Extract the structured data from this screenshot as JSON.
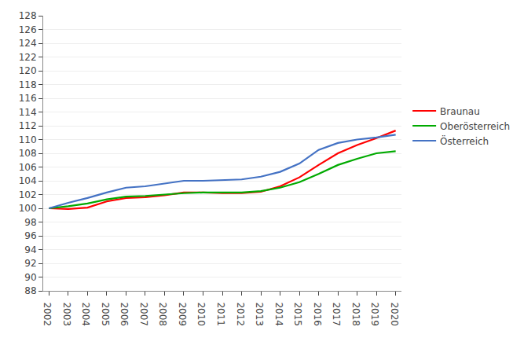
{
  "chart_data": {
    "type": "line",
    "x": [
      2002,
      2003,
      2004,
      2005,
      2006,
      2007,
      2008,
      2009,
      2010,
      2011,
      2012,
      2013,
      2014,
      2015,
      2016,
      2017,
      2018,
      2019,
      2020
    ],
    "series": [
      {
        "name": "Braunau",
        "color": "#ff0000",
        "values": [
          100.0,
          99.9,
          100.1,
          101.0,
          101.5,
          101.6,
          101.9,
          102.3,
          102.3,
          102.2,
          102.2,
          102.4,
          103.2,
          104.5,
          106.3,
          108.0,
          109.2,
          110.2,
          111.3
        ]
      },
      {
        "name": "Oberösterreich",
        "color": "#00aa00",
        "values": [
          100.0,
          100.3,
          100.7,
          101.3,
          101.7,
          101.8,
          102.0,
          102.2,
          102.3,
          102.3,
          102.3,
          102.5,
          103.0,
          103.8,
          105.0,
          106.3,
          107.2,
          108.0,
          108.3
        ]
      },
      {
        "name": "Österreich",
        "color": "#4472c4",
        "values": [
          100.0,
          100.8,
          101.5,
          102.3,
          103.0,
          103.2,
          103.6,
          104.0,
          104.0,
          104.1,
          104.2,
          104.6,
          105.3,
          106.5,
          108.5,
          109.5,
          110.0,
          110.3,
          110.7
        ]
      }
    ],
    "xlim": [
      2001.7,
      2020.3
    ],
    "xticks": [
      2002,
      2003,
      2004,
      2005,
      2006,
      2007,
      2008,
      2009,
      2010,
      2011,
      2012,
      2013,
      2014,
      2015,
      2016,
      2017,
      2018,
      2019,
      2020
    ],
    "ylim": [
      88,
      128
    ],
    "yticks": [
      88,
      90,
      92,
      94,
      96,
      98,
      100,
      102,
      104,
      106,
      108,
      110,
      112,
      114,
      116,
      118,
      120,
      122,
      124,
      126,
      128
    ],
    "grid": true,
    "legend": "right"
  }
}
